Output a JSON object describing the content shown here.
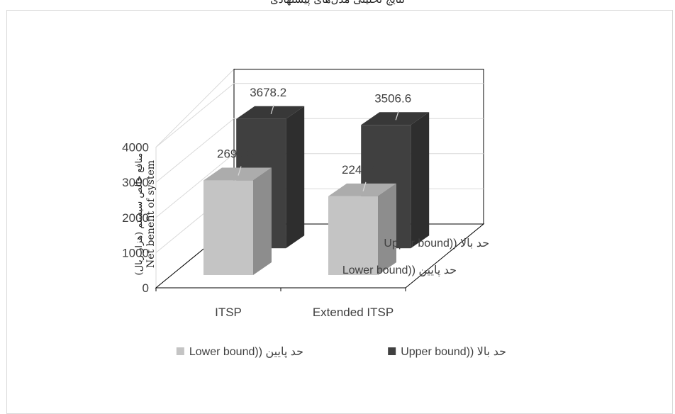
{
  "caption": "نتایج تحلیلی مدل‌های پیشنهادی",
  "chart_data": {
    "type": "bar",
    "categories": [
      "ITSP",
      "Extended ITSP"
    ],
    "series": [
      {
        "name": "حد پایین (Lower bound)",
        "axis_label": "حد پایین ((Lower bound",
        "legend_label": "حد پایین ((Lower bound",
        "color": "#c4c4c4",
        "values": [
          2690.3,
          2241.6
        ]
      },
      {
        "name": "حد بالا (Upper bound)",
        "axis_label": "حد بالا ((Upper bound",
        "legend_label": "حد بالا ((Upper bound",
        "color": "#404040",
        "values": [
          3678.2,
          3506.6
        ]
      }
    ],
    "data_labels": [
      [
        "2690.3",
        "2241.6"
      ],
      [
        "3678.2",
        "3506.6"
      ]
    ],
    "ylabel_fa": "منافع خالص سیستم (هزار ریال)",
    "ylabel_en": "Net benefit of system",
    "y_ticks": [
      "0",
      "1000",
      "2000",
      "3000",
      "4000"
    ],
    "ylim": [
      0,
      4000
    ],
    "grid": true,
    "legend": "bottom",
    "projection": "3d"
  }
}
